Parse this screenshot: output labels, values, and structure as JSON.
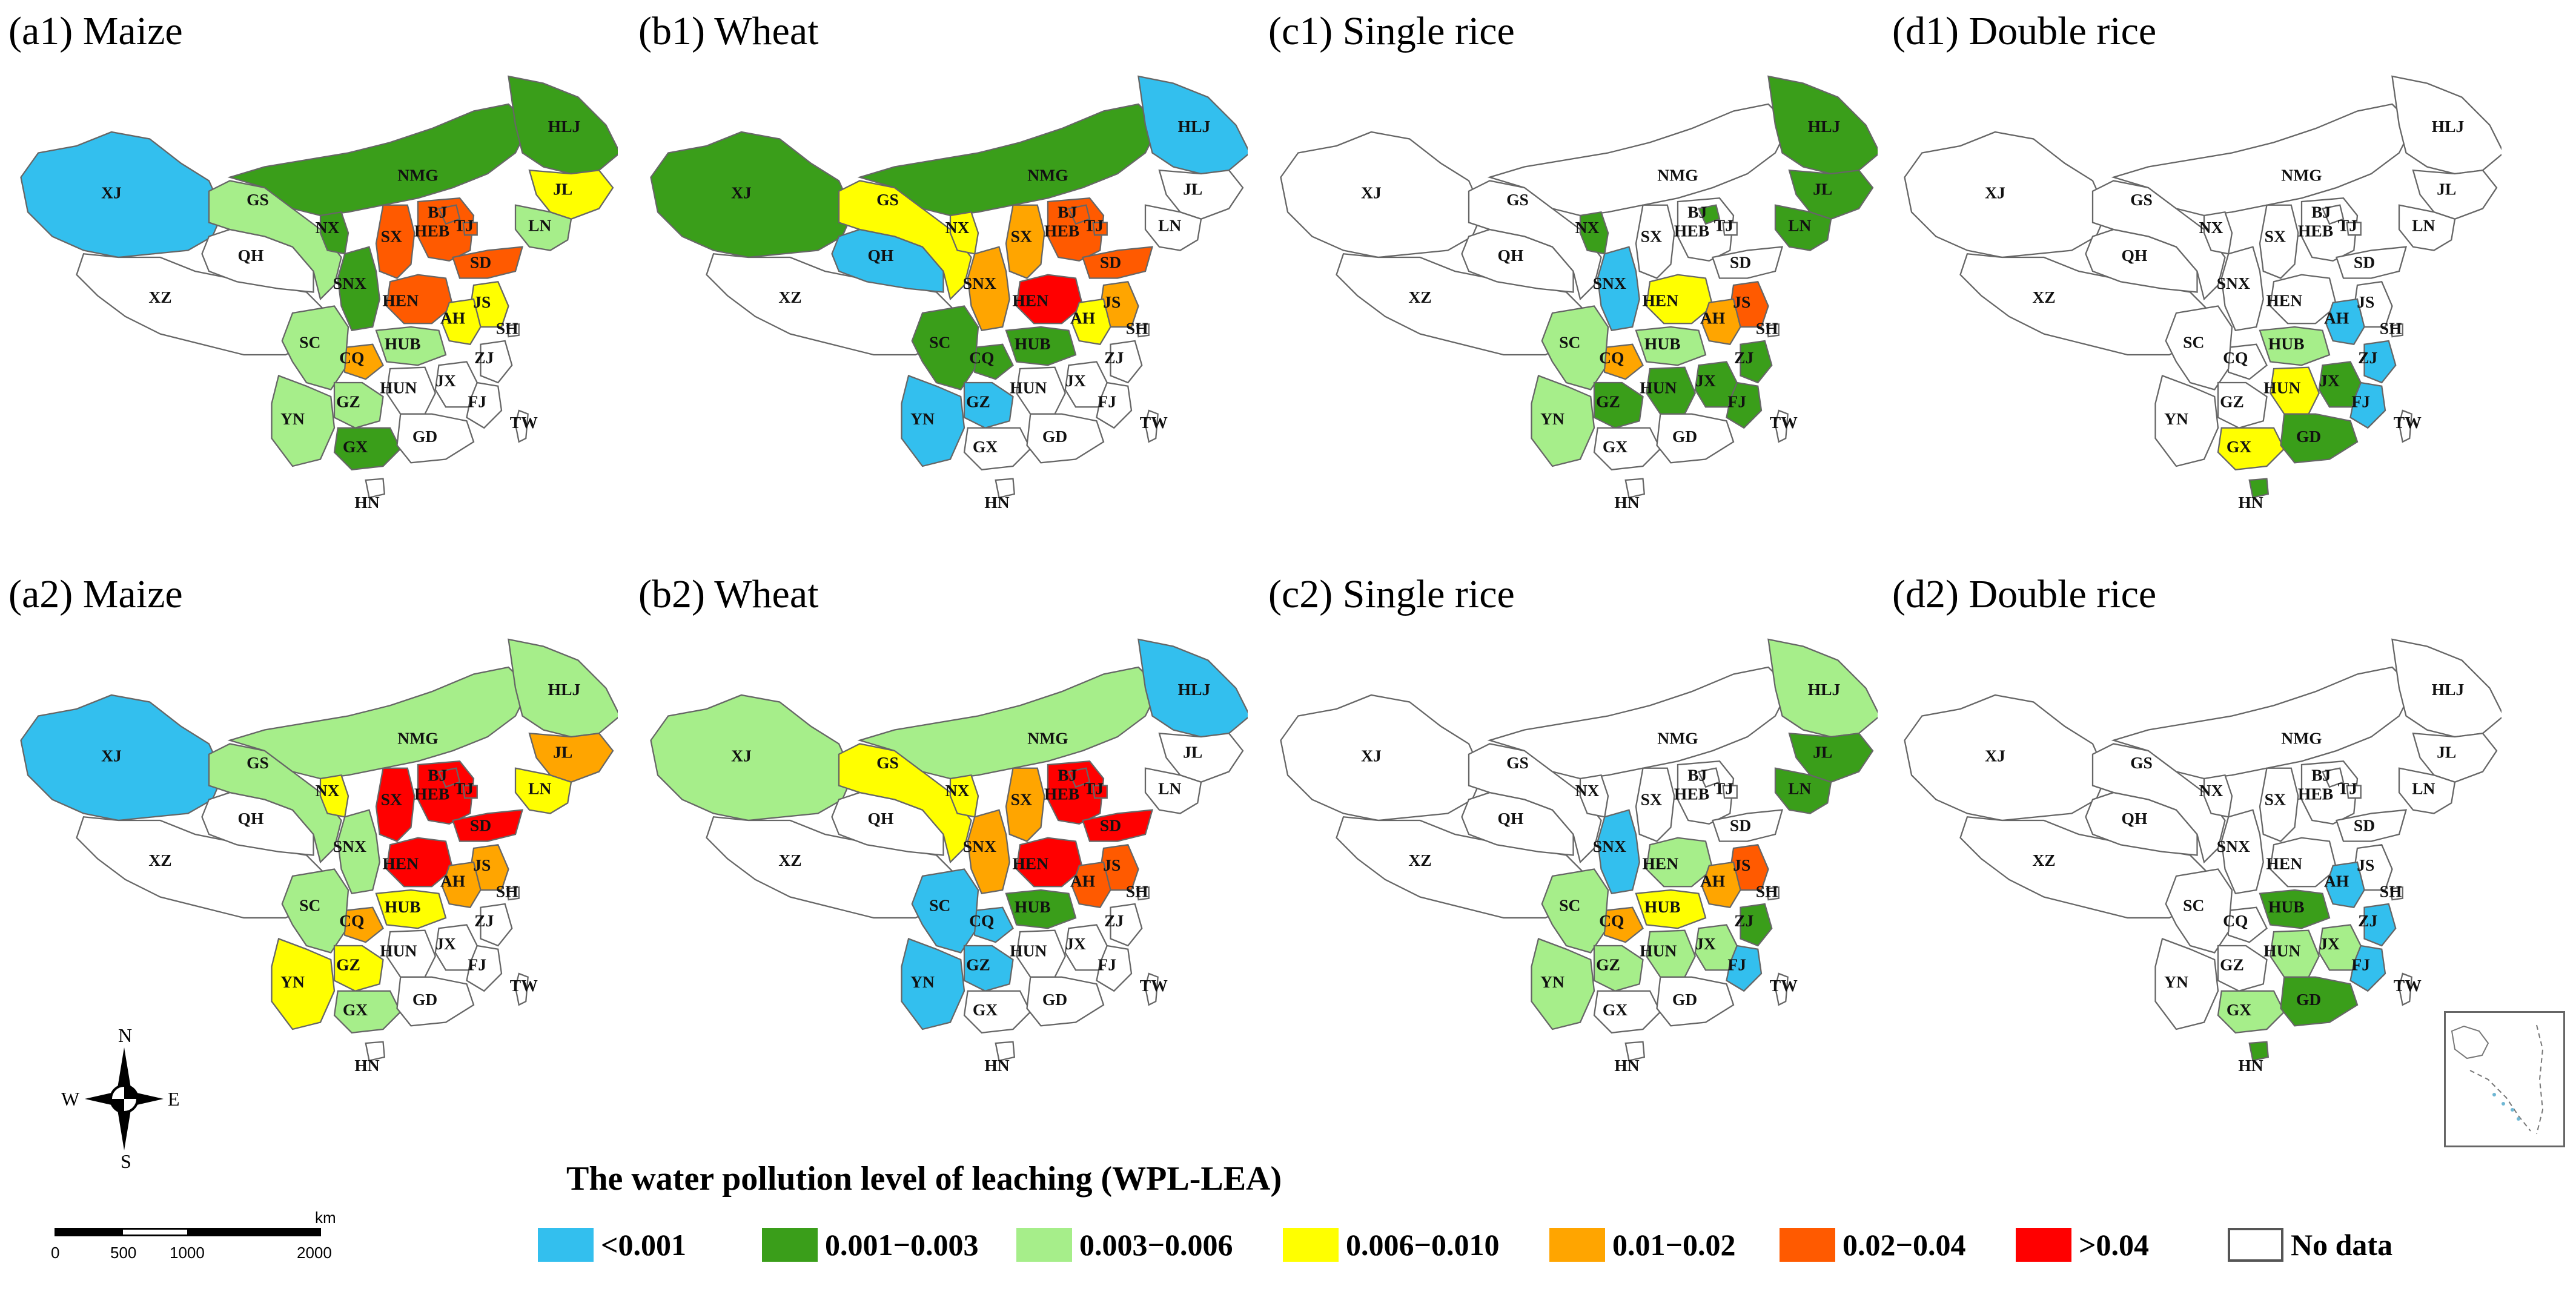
{
  "legend": {
    "title": "The water pollution level of leaching (WPL-LEA)",
    "items": [
      {
        "label": "<0.001",
        "color": "#33bfee"
      },
      {
        "label": "0.001−0.003",
        "color": "#3a9e1a"
      },
      {
        "label": "0.003−0.006",
        "color": "#a6ee8a"
      },
      {
        "label": "0.006−0.010",
        "color": "#ffff00"
      },
      {
        "label": "0.01−0.02",
        "color": "#ffa500"
      },
      {
        "label": "0.02−0.04",
        "color": "#ff5a00"
      },
      {
        "label": ">0.04",
        "color": "#ff0000"
      },
      {
        "label": "No data",
        "color": "#ffffff"
      }
    ]
  },
  "compass": {
    "n": "N",
    "s": "S",
    "e": "E",
    "w": "W"
  },
  "scalebar": {
    "unit": "km",
    "ticks": [
      "0",
      "500",
      "1000",
      "2000"
    ]
  },
  "panels": [
    {
      "title": "(a1) Maize",
      "levels": {
        "HLJ": 1,
        "JL": 3,
        "LN": 2,
        "NMG": 1,
        "BJ": 5,
        "TJ": 5,
        "HEB": 5,
        "SX": 5,
        "SD": 5,
        "HEN": 5,
        "NX": 1,
        "SNX": 1,
        "GS": 2,
        "XJ": 0,
        "AH": 3,
        "JS": 3,
        "HUB": 2,
        "CQ": 4,
        "SC": 2,
        "GZ": 2,
        "YN": 2,
        "GX": 1
      }
    },
    {
      "title": "(b1) Wheat",
      "levels": {
        "HLJ": 0,
        "NMG": 1,
        "BJ": 5,
        "TJ": 5,
        "HEB": 5,
        "SX": 4,
        "SD": 5,
        "HEN": 6,
        "NX": 3,
        "SNX": 4,
        "GS": 3,
        "QH": 0,
        "XJ": 1,
        "AH": 3,
        "JS": 4,
        "HUB": 1,
        "CQ": 1,
        "SC": 1,
        "GZ": 0,
        "YN": 0
      }
    },
    {
      "title": "(c1) Single rice",
      "levels": {
        "HLJ": 1,
        "JL": 1,
        "LN": 1,
        "BJ": 1,
        "NX": 1,
        "SNX": 0,
        "HEN": 3,
        "JS": 5,
        "AH": 4,
        "HUB": 2,
        "CQ": 4,
        "SC": 2,
        "GZ": 1,
        "YN": 2,
        "HUN": 1,
        "JX": 1,
        "ZJ": 1,
        "FJ": 1
      }
    },
    {
      "title": "(d1) Double rice",
      "levels": {
        "HUB": 2,
        "HUN": 3,
        "JX": 1,
        "AH": 0,
        "ZJ": 0,
        "FJ": 0,
        "GD": 1,
        "GX": 3,
        "HN": 1
      }
    },
    {
      "title": "(a2) Maize",
      "levels": {
        "HLJ": 2,
        "JL": 4,
        "LN": 3,
        "NMG": 2,
        "BJ": 6,
        "TJ": 6,
        "HEB": 6,
        "SX": 6,
        "SD": 6,
        "HEN": 6,
        "NX": 3,
        "SNX": 2,
        "GS": 2,
        "XJ": 0,
        "AH": 4,
        "JS": 4,
        "HUB": 3,
        "CQ": 4,
        "SC": 2,
        "GZ": 3,
        "YN": 3,
        "GX": 2
      }
    },
    {
      "title": "(b2) Wheat",
      "levels": {
        "HLJ": 0,
        "NMG": 2,
        "BJ": 6,
        "TJ": 6,
        "HEB": 6,
        "SX": 4,
        "SD": 6,
        "HEN": 6,
        "NX": 3,
        "SNX": 4,
        "GS": 3,
        "XJ": 2,
        "AH": 5,
        "JS": 5,
        "HUB": 1,
        "CQ": 0,
        "SC": 0,
        "GZ": 0,
        "YN": 0
      }
    },
    {
      "title": "(c2) Single rice",
      "levels": {
        "HLJ": 2,
        "JL": 1,
        "LN": 1,
        "SNX": 0,
        "HEN": 2,
        "JS": 5,
        "AH": 4,
        "HUB": 3,
        "CQ": 4,
        "SC": 2,
        "GZ": 2,
        "YN": 2,
        "HUN": 2,
        "JX": 2,
        "ZJ": 1,
        "FJ": 0
      }
    },
    {
      "title": "(d2) Double rice",
      "levels": {
        "HUB": 1,
        "AH": 0,
        "ZJ": 0,
        "HUN": 2,
        "JX": 2,
        "FJ": 0,
        "GD": 1,
        "GX": 2,
        "HN": 1
      }
    }
  ]
}
